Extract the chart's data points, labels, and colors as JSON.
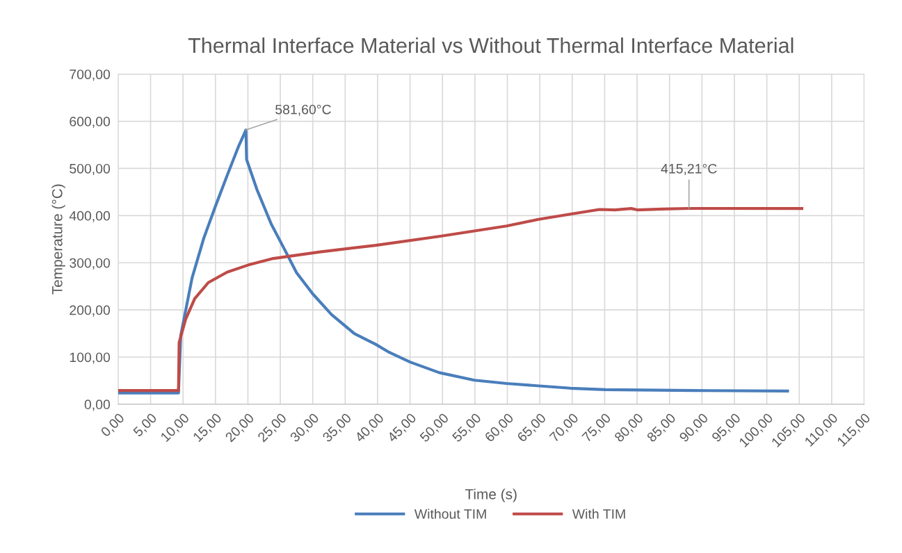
{
  "chart_data": {
    "type": "line",
    "title": "Thermal Interface Material vs Without Thermal Interface Material",
    "xlabel": "Time (s)",
    "ylabel": "Temperature (°C)",
    "series": [
      {
        "name": "Without TIM",
        "color": "#4a7ebb",
        "x": [
          0,
          5,
          9.3,
          9.65,
          11.4,
          13.2,
          15,
          16.8,
          18.6,
          19.7,
          19.8,
          21.4,
          23.6,
          25.7,
          27.5,
          30,
          32.9,
          36.4,
          39.7,
          41.8,
          45,
          49.5,
          54.9,
          59.9,
          69.7,
          75.1,
          88.9,
          103.2
        ],
        "values": [
          24,
          24,
          24,
          146,
          268,
          352,
          420,
          485,
          548,
          581.6,
          519,
          455,
          382,
          327,
          279,
          234,
          190,
          150,
          127,
          110,
          89.5,
          67,
          51,
          44,
          34,
          31,
          29,
          28
        ]
      },
      {
        "name": "With TIM",
        "color": "#be4b48",
        "x": [
          0,
          5,
          9.3,
          9.4,
          10.4,
          11.8,
          13.9,
          16.8,
          20,
          23.9,
          31.1,
          39.7,
          49.5,
          59.9,
          64.8,
          69.7,
          74.2,
          76.6,
          79.1,
          80.1,
          84,
          88,
          105.4
        ],
        "values": [
          29,
          29,
          29,
          131,
          180,
          224,
          258,
          280,
          295,
          309,
          323,
          337,
          356,
          378,
          392,
          403,
          413,
          412,
          415,
          412,
          414,
          415.21,
          415
        ]
      }
    ],
    "annotations": [
      {
        "text": "581,60°C",
        "x": 19.7,
        "y": 581.6
      },
      {
        "text": "415,21°C",
        "x": 88,
        "y": 415.21
      }
    ],
    "xlim": [
      0,
      115
    ],
    "xticks": [
      {
        "value": 0,
        "label": "0,00"
      },
      {
        "value": 5,
        "label": "5,00"
      },
      {
        "value": 10,
        "label": "10,00"
      },
      {
        "value": 15,
        "label": "15,00"
      },
      {
        "value": 20,
        "label": "20,00"
      },
      {
        "value": 25,
        "label": "25,00"
      },
      {
        "value": 30,
        "label": "30,00"
      },
      {
        "value": 35,
        "label": "35,00"
      },
      {
        "value": 40,
        "label": "40,00"
      },
      {
        "value": 45,
        "label": "45,00"
      },
      {
        "value": 50,
        "label": "50,00"
      },
      {
        "value": 55,
        "label": "55,00"
      },
      {
        "value": 60,
        "label": "60,00"
      },
      {
        "value": 65,
        "label": "65,00"
      },
      {
        "value": 70,
        "label": "70,00"
      },
      {
        "value": 75,
        "label": "75,00"
      },
      {
        "value": 80,
        "label": "80,00"
      },
      {
        "value": 85,
        "label": "85,00"
      },
      {
        "value": 90,
        "label": "90,00"
      },
      {
        "value": 95,
        "label": "95,00"
      },
      {
        "value": 100,
        "label": "100,00"
      },
      {
        "value": 105,
        "label": "105,00"
      },
      {
        "value": 110,
        "label": "110,00"
      },
      {
        "value": 115,
        "label": "115,00"
      }
    ],
    "ylim": [
      0,
      700
    ],
    "yticks": [
      {
        "value": 0,
        "label": "0,00"
      },
      {
        "value": 100,
        "label": "100,00"
      },
      {
        "value": 200,
        "label": "200,00"
      },
      {
        "value": 300,
        "label": "300,00"
      },
      {
        "value": 400,
        "label": "400,00"
      },
      {
        "value": 500,
        "label": "500,00"
      },
      {
        "value": 600,
        "label": "600,00"
      },
      {
        "value": 700,
        "label": "700,00"
      }
    ],
    "grid": true,
    "legend": "bottom",
    "marker": "none",
    "line_style": "solid"
  }
}
